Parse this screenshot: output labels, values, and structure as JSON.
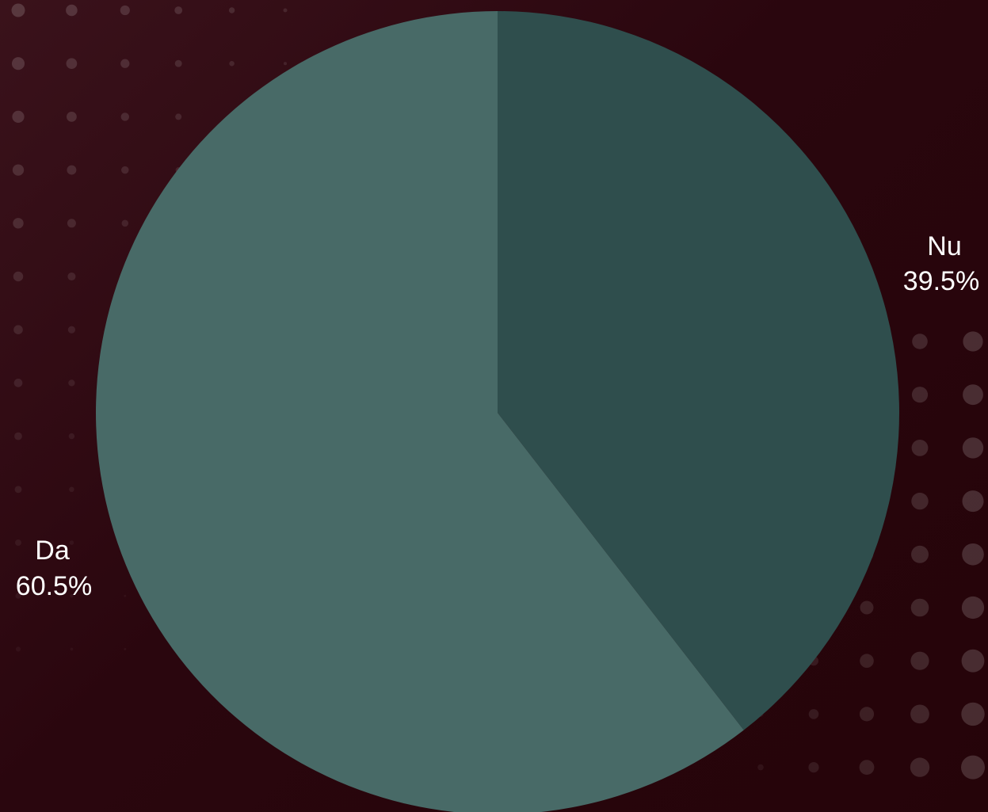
{
  "colors": {
    "background": "#2c0810",
    "dot": "#ffffff",
    "slice_da": "#486a67",
    "slice_nu": "#2f4e4d",
    "label": "#ffffff"
  },
  "chart_data": {
    "type": "pie",
    "title": "",
    "slices": [
      {
        "label": "Nu",
        "value": 39.5,
        "percent_label": "39.5%",
        "color": "#2f4e4d"
      },
      {
        "label": "Da",
        "value": 60.5,
        "percent_label": "60.5%",
        "color": "#486a67"
      }
    ],
    "start": "12 o'clock",
    "direction": "clockwise",
    "legend": "none"
  }
}
